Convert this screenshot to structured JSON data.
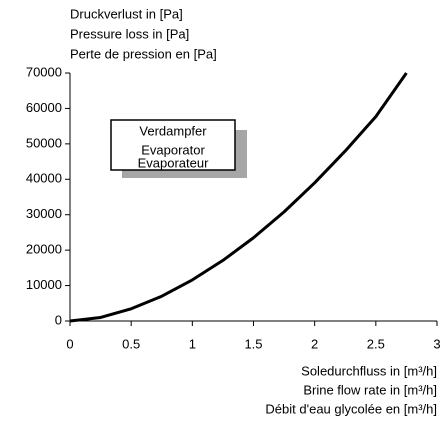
{
  "chart_data": {
    "type": "line",
    "y_label": [
      "Druckverlust in [Pa]",
      "Pressure loss in [Pa]",
      "Perte de pression en [Pa]"
    ],
    "x_label": [
      "Soledurchfluss in [m³/h]",
      "Brine flow rate in [m³/h]",
      "Débit d'eau glycolée en [m³/h]"
    ],
    "annotation": [
      "Verdampfer",
      "Evaporator",
      "Evaporateur"
    ],
    "x": [
      0,
      0.25,
      0.5,
      0.75,
      1,
      1.25,
      1.5,
      1.75,
      2,
      2.25,
      2.5,
      2.75
    ],
    "series": [
      {
        "name": "Verdampfer",
        "color": "#000000",
        "values": [
          0,
          1000,
          3450,
          7000,
          11600,
          17100,
          23500,
          30800,
          39000,
          48000,
          57700,
          70000
        ]
      }
    ],
    "xlim": [
      0,
      3
    ],
    "xticks": [
      0,
      0.5,
      1,
      1.5,
      2,
      2.5,
      3
    ],
    "ylim": [
      0,
      70000
    ],
    "yticks": [
      0,
      10000,
      20000,
      30000,
      40000,
      50000,
      60000,
      70000
    ],
    "grid": false
  }
}
